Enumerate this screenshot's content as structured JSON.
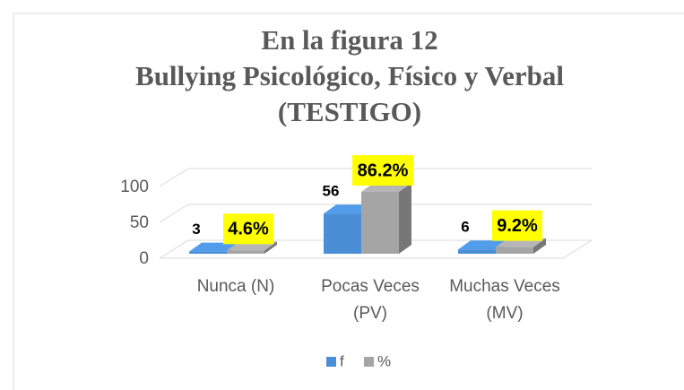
{
  "chart_data": {
    "type": "bar3d",
    "title": [
      "En la figura 12",
      "Bullying Psicológico, Físico y Verbal",
      "(TESTIGO)"
    ],
    "categories": [
      "Nunca (N)",
      "Pocas Veces (PV)",
      "Muchas Veces (MV)"
    ],
    "series": [
      {
        "name": "f",
        "color": "#4a8fd6",
        "values": [
          3,
          56,
          6
        ]
      },
      {
        "name": "%",
        "color": "#a5a5a5",
        "values": [
          4.6,
          86.2,
          9.2
        ],
        "value_labels": [
          "4.6%",
          "86.2%",
          "9.2%"
        ]
      }
    ],
    "ylim": [
      0,
      100
    ],
    "yticks": [
      0,
      50,
      100
    ],
    "grid": true,
    "legend": "bottom"
  }
}
